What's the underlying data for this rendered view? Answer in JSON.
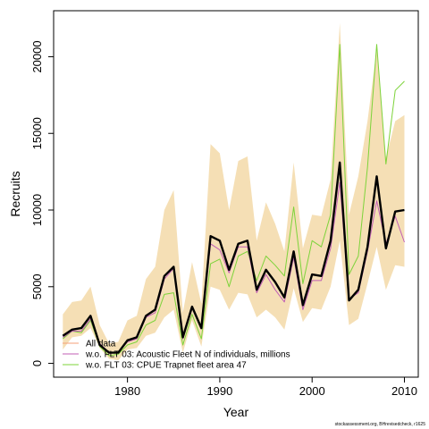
{
  "chart_data": {
    "type": "line",
    "xlabel": "Year",
    "ylabel": "Recruits",
    "xlim": [
      1972,
      2011.5
    ],
    "ylim": [
      -900,
      23000
    ],
    "x_ticks": [
      1980,
      1990,
      2000,
      2010
    ],
    "y_ticks": [
      0,
      5000,
      10000,
      15000,
      20000
    ],
    "x": [
      1973,
      1974,
      1975,
      1976,
      1977,
      1978,
      1979,
      1980,
      1981,
      1982,
      1983,
      1984,
      1985,
      1986,
      1987,
      1988,
      1989,
      1990,
      1991,
      1992,
      1993,
      1994,
      1995,
      1996,
      1997,
      1998,
      1999,
      2000,
      2001,
      2002,
      2003,
      2004,
      2005,
      2006,
      2007,
      2008,
      2009,
      2010
    ],
    "band": {
      "lower": [
        900,
        1700,
        1800,
        2300,
        1000,
        300,
        200,
        900,
        1000,
        1800,
        2000,
        3000,
        3500,
        700,
        2800,
        1100,
        5000,
        4800,
        3500,
        4600,
        4500,
        3000,
        3500,
        3000,
        2200,
        4900,
        2700,
        3600,
        3500,
        5000,
        8000,
        2500,
        2900,
        5200,
        7600,
        4800,
        6400,
        6300
      ],
      "upper": [
        3200,
        4000,
        4100,
        5000,
        2500,
        1300,
        1400,
        2800,
        3100,
        5500,
        6300,
        10000,
        11300,
        3300,
        6600,
        3900,
        14300,
        13700,
        10000,
        13200,
        13500,
        8000,
        10500,
        9100,
        7300,
        13100,
        7500,
        9700,
        9600,
        12000,
        22200,
        9700,
        12200,
        15800,
        20500,
        13400,
        15800,
        16200
      ]
    },
    "series": [
      {
        "name": "All data",
        "color": "#000000",
        "values": [
          1800,
          2200,
          2300,
          3100,
          1200,
          700,
          700,
          1500,
          1700,
          3100,
          3500,
          5700,
          6300,
          1700,
          3700,
          2300,
          8300,
          8000,
          6100,
          7800,
          8000,
          4800,
          6100,
          5300,
          4300,
          7300,
          3800,
          5800,
          5700,
          8000,
          13100,
          4100,
          4800,
          7600,
          12200,
          7500,
          9900,
          10000
        ]
      },
      {
        "name": "w.o. FLT 03: Acoustic Fleet  N of individuals, millions",
        "color": "#c05fb5",
        "values": [
          1700,
          2100,
          2100,
          2900,
          1300,
          700,
          700,
          1400,
          1600,
          3000,
          3300,
          5500,
          6200,
          1600,
          3700,
          2400,
          7800,
          7400,
          5900,
          7600,
          7600,
          4600,
          5800,
          4800,
          4000,
          6900,
          3500,
          5400,
          5400,
          7500,
          11800,
          4200,
          4600,
          7300,
          10600,
          7800,
          9600,
          7900
        ]
      },
      {
        "name": "w.o. FLT 03: CPUE Trapnet fleet area 47",
        "color": "#7dd33a",
        "values": [
          1600,
          2100,
          2000,
          2800,
          1100,
          500,
          600,
          1200,
          1400,
          2500,
          2800,
          4500,
          4600,
          1200,
          3200,
          1600,
          6500,
          6800,
          5000,
          7000,
          7300,
          5400,
          7000,
          6400,
          5700,
          10200,
          5200,
          8000,
          7600,
          9700,
          20800,
          5800,
          7000,
          12800,
          20800,
          13000,
          17800,
          18400
        ]
      }
    ],
    "band_color": "#f5dfb5",
    "legend_placement": "bottom-left",
    "legend_entries": [
      {
        "label": "All data",
        "color": "#f4a07a"
      },
      {
        "label": "w.o. FLT 03: Acoustic Fleet  N of individuals, millions",
        "color": "#c05fb5"
      },
      {
        "label": "w.o. FLT 03: CPUE Trapnet fleet area 47",
        "color": "#7dd33a"
      }
    ],
    "grid": false
  },
  "footer": "stockassessment.org, BHrevisedcheck, r1625"
}
